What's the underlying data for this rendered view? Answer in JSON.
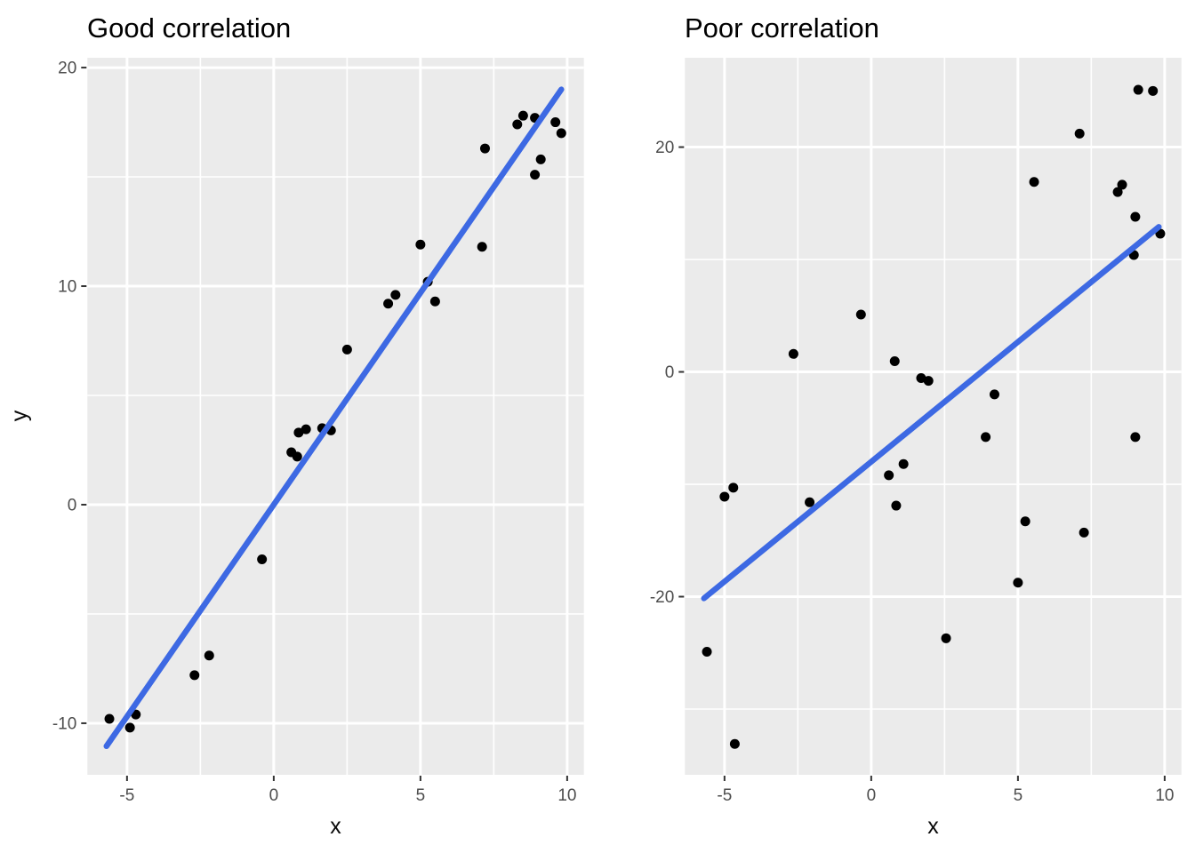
{
  "figure": {
    "background": "#FFFFFF"
  },
  "styles": {
    "panel_background": "#EBEBEB",
    "gridline_color": "#FFFFFF",
    "point_color": "#000000",
    "trend_line_color": "#3D69E3",
    "tick_mark_color": "#333333",
    "tick_label_color": "#4D4D4D",
    "title_color": "#000000"
  },
  "chart_data": [
    {
      "type": "scatter",
      "title": "Good correlation",
      "xlabel": "x",
      "ylabel": "y",
      "xlim": [
        -6.35,
        10.57
      ],
      "ylim": [
        -12.36,
        20.45
      ],
      "x_ticks": [
        {
          "value": -5,
          "label": "-5"
        },
        {
          "value": 0,
          "label": "0"
        },
        {
          "value": 5,
          "label": "5"
        },
        {
          "value": 10,
          "label": "10"
        }
      ],
      "y_ticks": [
        {
          "value": -10,
          "label": "-10"
        },
        {
          "value": 0,
          "label": "0"
        },
        {
          "value": 10,
          "label": "10"
        },
        {
          "value": 20,
          "label": "20"
        }
      ],
      "grid": true,
      "legend": "none",
      "points": [
        [
          -5.6,
          -9.8
        ],
        [
          -4.9,
          -10.2
        ],
        [
          -4.7,
          -9.6
        ],
        [
          -2.7,
          -7.8
        ],
        [
          -2.2,
          -6.9
        ],
        [
          -0.4,
          -2.5
        ],
        [
          0.6,
          2.4
        ],
        [
          0.8,
          2.2
        ],
        [
          0.85,
          3.3
        ],
        [
          1.1,
          3.45
        ],
        [
          1.65,
          3.5
        ],
        [
          1.95,
          3.4
        ],
        [
          2.5,
          7.1
        ],
        [
          3.9,
          9.2
        ],
        [
          4.15,
          9.6
        ],
        [
          5.0,
          11.9
        ],
        [
          5.25,
          10.2
        ],
        [
          5.5,
          9.3
        ],
        [
          7.1,
          11.8
        ],
        [
          7.2,
          16.3
        ],
        [
          8.3,
          17.4
        ],
        [
          8.5,
          17.8
        ],
        [
          8.9,
          17.7
        ],
        [
          9.1,
          15.8
        ],
        [
          8.9,
          15.1
        ],
        [
          9.6,
          17.5
        ],
        [
          9.8,
          17.0
        ]
      ],
      "trend_line": {
        "x1": -5.7,
        "y1": -11.05,
        "x2": 9.8,
        "y2": 19.0
      }
    },
    {
      "type": "scatter",
      "title": "Poor correlation",
      "xlabel": "x",
      "ylabel": "",
      "xlim": [
        -6.35,
        10.57
      ],
      "ylim": [
        -35.85,
        27.95
      ],
      "x_ticks": [
        {
          "value": -5,
          "label": "-5"
        },
        {
          "value": 0,
          "label": "0"
        },
        {
          "value": 5,
          "label": "5"
        },
        {
          "value": 10,
          "label": "10"
        }
      ],
      "y_ticks": [
        {
          "value": -20,
          "label": "-20"
        },
        {
          "value": 0,
          "label": "0"
        },
        {
          "value": 20,
          "label": "20"
        }
      ],
      "grid": true,
      "legend": "none",
      "points": [
        [
          9.1,
          25.1
        ],
        [
          9.6,
          25.0
        ],
        [
          7.1,
          21.2
        ],
        [
          5.55,
          16.9
        ],
        [
          8.4,
          16.0
        ],
        [
          8.55,
          16.65
        ],
        [
          9.0,
          13.8
        ],
        [
          9.85,
          12.3
        ],
        [
          8.95,
          10.4
        ],
        [
          -0.35,
          5.1
        ],
        [
          -2.65,
          1.6
        ],
        [
          0.8,
          0.95
        ],
        [
          1.7,
          -0.55
        ],
        [
          1.95,
          -0.8
        ],
        [
          4.2,
          -2.0
        ],
        [
          3.9,
          -5.8
        ],
        [
          9.0,
          -5.8
        ],
        [
          -4.7,
          -10.3
        ],
        [
          -5.0,
          -11.1
        ],
        [
          0.6,
          -9.2
        ],
        [
          1.1,
          -8.2
        ],
        [
          0.85,
          -11.9
        ],
        [
          -2.1,
          -11.6
        ],
        [
          5.25,
          -13.3
        ],
        [
          7.25,
          -14.3
        ],
        [
          5.0,
          -18.75
        ],
        [
          2.55,
          -23.7
        ],
        [
          -5.6,
          -24.9
        ],
        [
          -4.65,
          -33.1
        ]
      ],
      "trend_line": {
        "x1": -5.7,
        "y1": -20.15,
        "x2": 9.8,
        "y2": 12.9
      }
    }
  ]
}
